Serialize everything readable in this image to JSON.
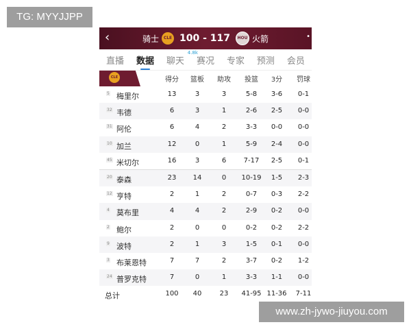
{
  "watermarks": {
    "top_left": "TG: MYYJJPP",
    "bottom_right": "www.zh-jywo-jiuyou.com"
  },
  "header": {
    "home_team": "骑士",
    "home_logo": "CLE",
    "score": "100 - 117",
    "away_logo": "HOU",
    "away_team": "火箭",
    "colors": {
      "primary": "#6e1c30",
      "accent": "#2a7fd4"
    }
  },
  "tabs": [
    {
      "label": "直播"
    },
    {
      "label": "数据",
      "active": true
    },
    {
      "label": "聊天",
      "badge": "4.8k"
    },
    {
      "label": "赛况"
    },
    {
      "label": "专家"
    },
    {
      "label": "预测"
    },
    {
      "label": "会员"
    }
  ],
  "table": {
    "team_logo": "CLE",
    "columns": [
      "得分",
      "篮板",
      "助攻",
      "投篮",
      "3分",
      "罚球"
    ],
    "rows": [
      {
        "num": "5",
        "name": "梅里尔",
        "vals": [
          "13",
          "3",
          "3",
          "5-8",
          "3-6",
          "0-1"
        ]
      },
      {
        "num": "32",
        "name": "韦德",
        "vals": [
          "6",
          "3",
          "1",
          "2-6",
          "2-5",
          "0-0"
        ]
      },
      {
        "num": "31",
        "name": "阿伦",
        "vals": [
          "6",
          "4",
          "2",
          "3-3",
          "0-0",
          "0-0"
        ]
      },
      {
        "num": "10",
        "name": "加兰",
        "vals": [
          "12",
          "0",
          "1",
          "5-9",
          "2-4",
          "0-0"
        ]
      },
      {
        "num": "45",
        "name": "米切尔",
        "vals": [
          "16",
          "3",
          "6",
          "7-17",
          "2-5",
          "0-1"
        ]
      },
      {
        "num": "20",
        "name": "泰森",
        "vals": [
          "23",
          "14",
          "0",
          "10-19",
          "1-5",
          "2-3"
        ]
      },
      {
        "num": "12",
        "name": "亨特",
        "vals": [
          "2",
          "1",
          "2",
          "0-7",
          "0-3",
          "2-2"
        ]
      },
      {
        "num": "4",
        "name": "莫布里",
        "vals": [
          "4",
          "4",
          "2",
          "2-9",
          "0-2",
          "0-0"
        ]
      },
      {
        "num": "2",
        "name": "鲍尔",
        "vals": [
          "2",
          "0",
          "0",
          "0-2",
          "0-2",
          "2-2"
        ]
      },
      {
        "num": "9",
        "name": "波特",
        "vals": [
          "2",
          "1",
          "3",
          "1-5",
          "0-1",
          "0-0"
        ]
      },
      {
        "num": "3",
        "name": "布莱恩特",
        "vals": [
          "7",
          "7",
          "2",
          "3-7",
          "0-2",
          "1-2"
        ]
      },
      {
        "num": "24",
        "name": "普罗克特",
        "vals": [
          "7",
          "0",
          "1",
          "3-3",
          "1-1",
          "0-0"
        ]
      }
    ],
    "total": {
      "label": "总计",
      "vals": [
        "100",
        "40",
        "23",
        "41-95",
        "11-36",
        "7-11"
      ]
    }
  }
}
